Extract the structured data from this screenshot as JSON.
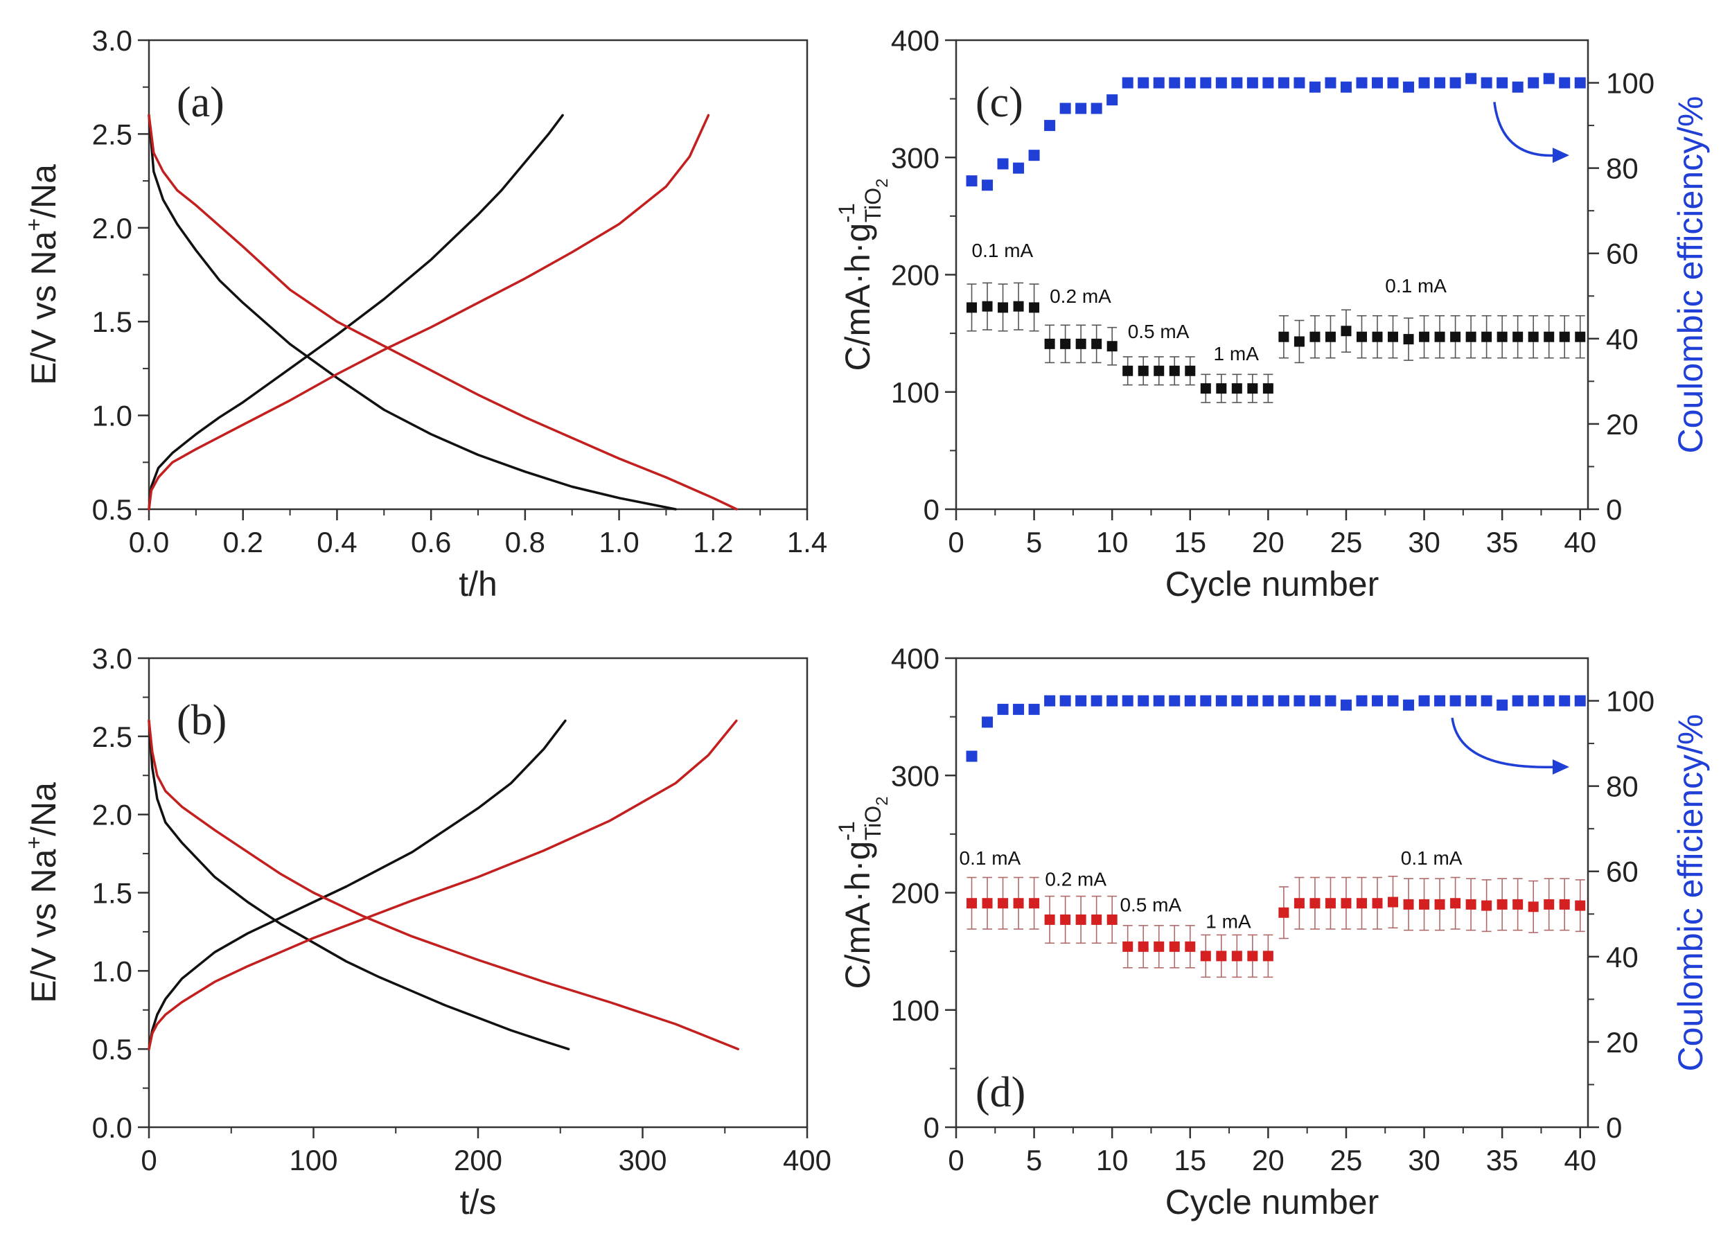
{
  "chart_data": [
    {
      "panel": "a",
      "type": "line",
      "panel_label": "(a)",
      "xlabel": "t/h",
      "ylabel_parts": [
        "E/V vs Na",
        "+",
        "/Na"
      ],
      "xlim": [
        0.0,
        1.4
      ],
      "ylim": [
        0.5,
        3.0
      ],
      "xticks": [
        0.0,
        0.2,
        0.4,
        0.6,
        0.8,
        1.0,
        1.2,
        1.4
      ],
      "xtick_labels": [
        "0.0",
        "0.2",
        "0.4",
        "0.6",
        "0.8",
        "1.0",
        "1.2",
        "1.4"
      ],
      "yticks": [
        0.5,
        1.0,
        1.5,
        2.0,
        2.5,
        3.0
      ],
      "ytick_labels": [
        "0.5",
        "1.0",
        "1.5",
        "2.0",
        "2.5",
        "3.0"
      ],
      "series": [
        {
          "name": "black discharge",
          "color": "#111111",
          "x": [
            0.0,
            0.01,
            0.03,
            0.06,
            0.1,
            0.15,
            0.2,
            0.3,
            0.4,
            0.5,
            0.6,
            0.7,
            0.8,
            0.9,
            1.0,
            1.12
          ],
          "y": [
            2.6,
            2.3,
            2.15,
            2.02,
            1.88,
            1.72,
            1.6,
            1.38,
            1.2,
            1.03,
            0.9,
            0.79,
            0.7,
            0.62,
            0.56,
            0.5
          ]
        },
        {
          "name": "black charge",
          "color": "#111111",
          "x": [
            0.0,
            0.005,
            0.02,
            0.05,
            0.1,
            0.15,
            0.2,
            0.3,
            0.4,
            0.5,
            0.6,
            0.7,
            0.75,
            0.8,
            0.85,
            0.88
          ],
          "y": [
            0.5,
            0.62,
            0.72,
            0.8,
            0.9,
            0.99,
            1.07,
            1.25,
            1.43,
            1.62,
            1.83,
            2.07,
            2.2,
            2.35,
            2.5,
            2.6
          ]
        },
        {
          "name": "red discharge",
          "color": "#c41f1f",
          "x": [
            0.0,
            0.01,
            0.03,
            0.06,
            0.1,
            0.2,
            0.3,
            0.4,
            0.5,
            0.6,
            0.7,
            0.8,
            0.9,
            1.0,
            1.1,
            1.2,
            1.25
          ],
          "y": [
            2.6,
            2.4,
            2.3,
            2.2,
            2.12,
            1.9,
            1.67,
            1.5,
            1.37,
            1.24,
            1.11,
            0.99,
            0.88,
            0.77,
            0.67,
            0.56,
            0.5
          ]
        },
        {
          "name": "red charge",
          "color": "#c41f1f",
          "x": [
            0.0,
            0.005,
            0.02,
            0.05,
            0.1,
            0.2,
            0.3,
            0.4,
            0.5,
            0.6,
            0.7,
            0.8,
            0.9,
            1.0,
            1.1,
            1.15,
            1.19
          ],
          "y": [
            0.5,
            0.6,
            0.67,
            0.75,
            0.82,
            0.95,
            1.08,
            1.22,
            1.35,
            1.47,
            1.6,
            1.73,
            1.87,
            2.02,
            2.22,
            2.38,
            2.6
          ]
        }
      ]
    },
    {
      "panel": "b",
      "type": "line",
      "panel_label": "(b)",
      "xlabel": "t/s",
      "ylabel_parts": [
        "E/V vs Na",
        "+",
        "/Na"
      ],
      "xlim": [
        0,
        400
      ],
      "ylim": [
        0.0,
        3.0
      ],
      "xticks": [
        0,
        100,
        200,
        300,
        400
      ],
      "xtick_labels": [
        "0",
        "100",
        "200",
        "300",
        "400"
      ],
      "yticks": [
        0.0,
        0.5,
        1.0,
        1.5,
        2.0,
        2.5,
        3.0
      ],
      "ytick_labels": [
        "0.0",
        "0.5",
        "1.0",
        "1.5",
        "2.0",
        "2.5",
        "3.0"
      ],
      "series": [
        {
          "name": "black discharge",
          "color": "#111111",
          "x": [
            0,
            2,
            5,
            10,
            20,
            40,
            60,
            80,
            100,
            120,
            140,
            160,
            180,
            200,
            220,
            240,
            255
          ],
          "y": [
            2.6,
            2.3,
            2.1,
            1.95,
            1.82,
            1.6,
            1.44,
            1.3,
            1.18,
            1.06,
            0.96,
            0.87,
            0.78,
            0.7,
            0.62,
            0.55,
            0.5
          ]
        },
        {
          "name": "black charge",
          "color": "#111111",
          "x": [
            0,
            2,
            5,
            10,
            20,
            40,
            60,
            80,
            100,
            120,
            140,
            160,
            180,
            200,
            220,
            240,
            253
          ],
          "y": [
            0.5,
            0.62,
            0.72,
            0.82,
            0.95,
            1.12,
            1.24,
            1.34,
            1.44,
            1.54,
            1.65,
            1.76,
            1.9,
            2.04,
            2.2,
            2.42,
            2.6
          ]
        },
        {
          "name": "red discharge",
          "color": "#c41f1f",
          "x": [
            0,
            2,
            5,
            10,
            20,
            40,
            60,
            80,
            100,
            130,
            160,
            200,
            240,
            280,
            320,
            358
          ],
          "y": [
            2.6,
            2.4,
            2.25,
            2.15,
            2.05,
            1.9,
            1.76,
            1.62,
            1.5,
            1.35,
            1.22,
            1.07,
            0.93,
            0.8,
            0.66,
            0.5
          ]
        },
        {
          "name": "red charge",
          "color": "#c41f1f",
          "x": [
            0,
            2,
            5,
            10,
            20,
            40,
            60,
            80,
            100,
            130,
            160,
            200,
            240,
            280,
            320,
            340,
            357
          ],
          "y": [
            0.5,
            0.6,
            0.66,
            0.72,
            0.8,
            0.93,
            1.03,
            1.12,
            1.21,
            1.33,
            1.45,
            1.6,
            1.77,
            1.96,
            2.2,
            2.38,
            2.6
          ]
        }
      ]
    },
    {
      "panel": "c",
      "type": "scatter",
      "panel_label": "(c)",
      "xlabel": "Cycle number",
      "ylabel": "C/mA·h·g",
      "ylabel_sup": "-1",
      "ylabel_sub": "TiO",
      "ylabel_sub2": "2",
      "y2label": "Coulombic efficiency/%",
      "xlim": [
        0,
        40.5
      ],
      "ylim": [
        0,
        400
      ],
      "y2lim": [
        0,
        110
      ],
      "xticks": [
        0,
        5,
        10,
        15,
        20,
        25,
        30,
        35,
        40
      ],
      "xtick_labels": [
        "0",
        "5",
        "10",
        "15",
        "20",
        "25",
        "30",
        "35",
        "40"
      ],
      "yticks": [
        0,
        100,
        200,
        300,
        400
      ],
      "ytick_labels": [
        "0",
        "100",
        "200",
        "300",
        "400"
      ],
      "y2ticks": [
        0,
        20,
        40,
        60,
        80,
        100
      ],
      "y2tick_labels": [
        "0",
        "20",
        "40",
        "60",
        "80",
        "100"
      ],
      "capacity_color": "#111111",
      "efficiency_color": "#1f3fd6",
      "cycles": [
        1,
        2,
        3,
        4,
        5,
        6,
        7,
        8,
        9,
        10,
        11,
        12,
        13,
        14,
        15,
        16,
        17,
        18,
        19,
        20,
        21,
        22,
        23,
        24,
        25,
        26,
        27,
        28,
        29,
        30,
        31,
        32,
        33,
        34,
        35,
        36,
        37,
        38,
        39,
        40
      ],
      "capacity": [
        172,
        173,
        172,
        173,
        172,
        141,
        141,
        141,
        141,
        139,
        118,
        118,
        118,
        118,
        118,
        103,
        103,
        103,
        103,
        103,
        147,
        143,
        147,
        147,
        152,
        147,
        147,
        147,
        145,
        147,
        147,
        147,
        147,
        147,
        147,
        147,
        147,
        147,
        147,
        147
      ],
      "capacity_error": [
        20,
        20,
        20,
        20,
        20,
        16,
        16,
        16,
        16,
        16,
        12,
        12,
        12,
        12,
        12,
        12,
        12,
        12,
        12,
        12,
        18,
        18,
        18,
        18,
        18,
        18,
        18,
        18,
        18,
        18,
        18,
        18,
        18,
        18,
        18,
        18,
        18,
        18,
        18,
        18
      ],
      "efficiency": [
        77,
        76,
        81,
        80,
        83,
        90,
        94,
        94,
        94,
        96,
        100,
        100,
        100,
        100,
        100,
        100,
        100,
        100,
        100,
        100,
        100,
        100,
        99,
        100,
        99,
        100,
        100,
        100,
        99,
        100,
        100,
        100,
        101,
        100,
        100,
        99,
        100,
        101,
        100,
        100
      ],
      "annotations": [
        {
          "text": "0.1 mA",
          "x": 1,
          "y": 215
        },
        {
          "text": "0.2 mA",
          "x": 6,
          "y": 176
        },
        {
          "text": "0.5 mA",
          "x": 11,
          "y": 146
        },
        {
          "text": "1 mA",
          "x": 16.5,
          "y": 127
        },
        {
          "text": "0.1 mA",
          "x": 27.5,
          "y": 185
        }
      ]
    },
    {
      "panel": "d",
      "type": "scatter",
      "panel_label": "(d)",
      "xlabel": "Cycle number",
      "ylabel": "C/mA·h·g",
      "ylabel_sup": "-1",
      "ylabel_sub": "TiO",
      "ylabel_sub2": "2",
      "y2label": "Coulombic efficiency/%",
      "xlim": [
        0,
        40.5
      ],
      "ylim": [
        0,
        400
      ],
      "y2lim": [
        0,
        110
      ],
      "xticks": [
        0,
        5,
        10,
        15,
        20,
        25,
        30,
        35,
        40
      ],
      "xtick_labels": [
        "0",
        "5",
        "10",
        "15",
        "20",
        "25",
        "30",
        "35",
        "40"
      ],
      "yticks": [
        0,
        100,
        200,
        300,
        400
      ],
      "ytick_labels": [
        "0",
        "100",
        "200",
        "300",
        "400"
      ],
      "y2ticks": [
        0,
        20,
        40,
        60,
        80,
        100
      ],
      "y2tick_labels": [
        "0",
        "20",
        "40",
        "60",
        "80",
        "100"
      ],
      "capacity_color": "#d42020",
      "efficiency_color": "#1f3fd6",
      "cycles": [
        1,
        2,
        3,
        4,
        5,
        6,
        7,
        8,
        9,
        10,
        11,
        12,
        13,
        14,
        15,
        16,
        17,
        18,
        19,
        20,
        21,
        22,
        23,
        24,
        25,
        26,
        27,
        28,
        29,
        30,
        31,
        32,
        33,
        34,
        35,
        36,
        37,
        38,
        39,
        40
      ],
      "capacity": [
        191,
        191,
        191,
        191,
        191,
        177,
        177,
        177,
        177,
        177,
        154,
        154,
        154,
        154,
        154,
        146,
        146,
        146,
        146,
        146,
        183,
        191,
        191,
        191,
        191,
        191,
        191,
        192,
        190,
        190,
        190,
        191,
        190,
        189,
        190,
        190,
        188,
        190,
        190,
        189
      ],
      "capacity_error": [
        22,
        22,
        22,
        22,
        22,
        20,
        20,
        20,
        20,
        20,
        18,
        18,
        18,
        18,
        18,
        18,
        18,
        18,
        18,
        18,
        22,
        22,
        22,
        22,
        22,
        22,
        22,
        22,
        22,
        22,
        22,
        22,
        22,
        22,
        22,
        22,
        22,
        22,
        22,
        22
      ],
      "efficiency": [
        87,
        95,
        98,
        98,
        98,
        100,
        100,
        100,
        100,
        100,
        100,
        100,
        100,
        100,
        100,
        100,
        100,
        100,
        100,
        100,
        100,
        100,
        100,
        100,
        99,
        100,
        100,
        100,
        99,
        100,
        100,
        100,
        100,
        100,
        99,
        100,
        100,
        100,
        100,
        100
      ],
      "annotations": [
        {
          "text": "0.1 mA",
          "x": 0.2,
          "y": 224
        },
        {
          "text": "0.2 mA",
          "x": 5.7,
          "y": 206
        },
        {
          "text": "0.5 mA",
          "x": 10.5,
          "y": 184
        },
        {
          "text": "1 mA",
          "x": 16,
          "y": 170
        },
        {
          "text": "0.1 mA",
          "x": 28.5,
          "y": 224
        }
      ]
    }
  ]
}
